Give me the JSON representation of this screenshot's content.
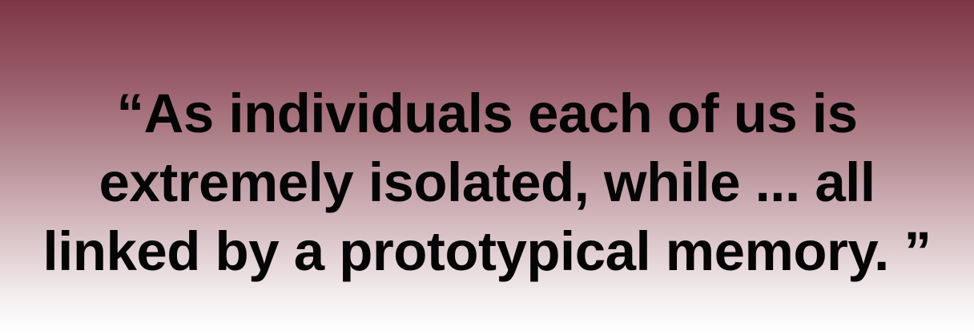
{
  "quote": {
    "lines": [
      "“As individuals each of us is",
      "extremely isolated, while ... all",
      "linked by a prototypical memory. ”"
    ]
  },
  "colors": {
    "gradient_top": "#7e3645",
    "gradient_bottom": "#ffffff",
    "text": "#050505"
  }
}
